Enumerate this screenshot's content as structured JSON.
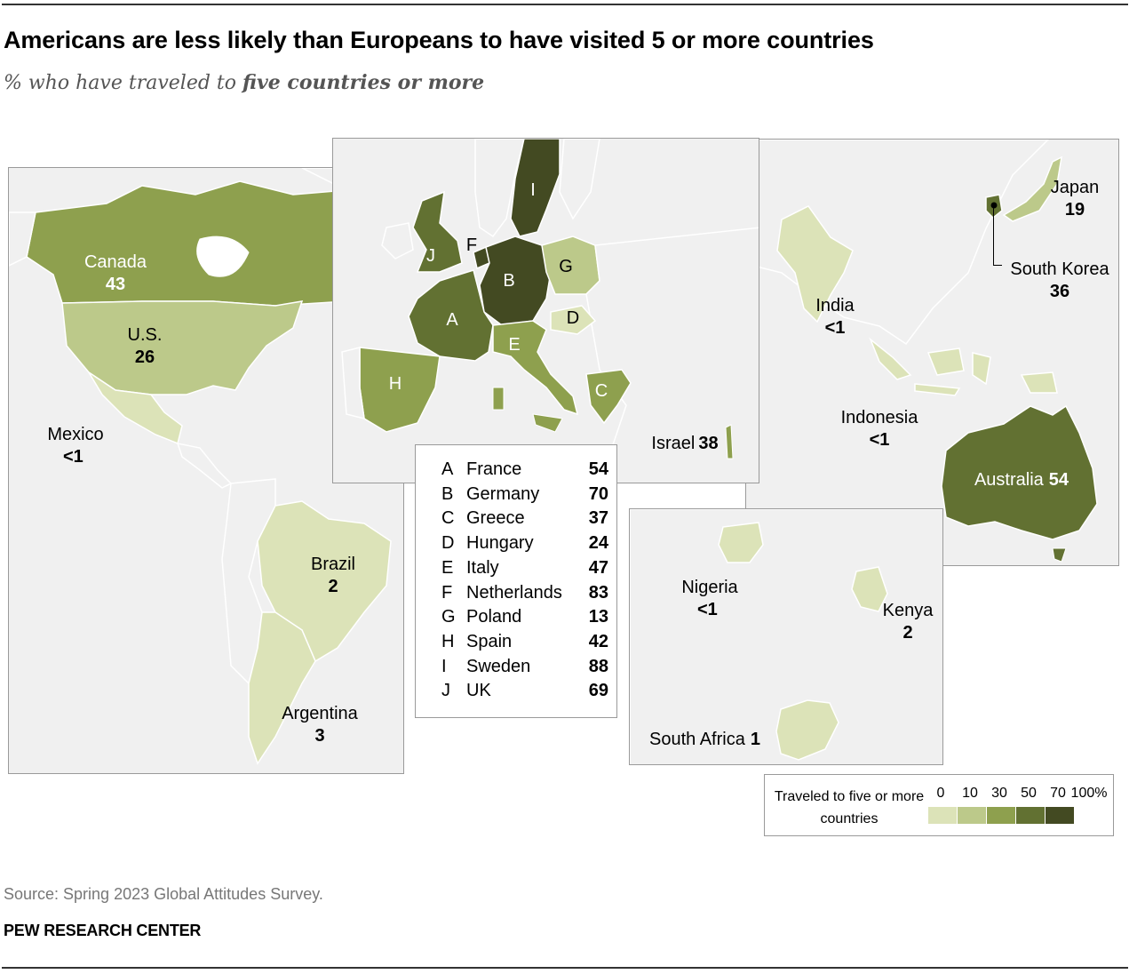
{
  "title": "Americans are less likely than Europeans to have visited 5 or more countries",
  "subtitle": {
    "prefix": "% who have traveled to ",
    "emphasis": "five countries or more"
  },
  "map_labels": {
    "canada": {
      "name": "Canada",
      "value": "43"
    },
    "us": {
      "name": "U.S.",
      "value": "26"
    },
    "mexico": {
      "name": "Mexico",
      "value": "<1"
    },
    "brazil": {
      "name": "Brazil",
      "value": "2"
    },
    "argentina": {
      "name": "Argentina",
      "value": "3"
    },
    "israel": {
      "name": "Israel",
      "value": "38"
    },
    "japan": {
      "name": "Japan",
      "value": "19"
    },
    "south_korea": {
      "name": "South Korea",
      "value": "36"
    },
    "india": {
      "name": "India",
      "value": "<1"
    },
    "indonesia": {
      "name": "Indonesia",
      "value": "<1"
    },
    "australia": {
      "name": "Australia",
      "value": "54"
    },
    "nigeria": {
      "name": "Nigeria",
      "value": "<1"
    },
    "kenya": {
      "name": "Kenya",
      "value": "2"
    },
    "south_africa": {
      "name": "South Africa",
      "value": "1"
    }
  },
  "europe_letters": {
    "A": "A",
    "B": "B",
    "C": "C",
    "D": "D",
    "E": "E",
    "F": "F",
    "G": "G",
    "H": "H",
    "I": "I",
    "J": "J"
  },
  "europe_table": [
    {
      "key": "A",
      "country": "France",
      "value": "54"
    },
    {
      "key": "B",
      "country": "Germany",
      "value": "70"
    },
    {
      "key": "C",
      "country": "Greece",
      "value": "37"
    },
    {
      "key": "D",
      "country": "Hungary",
      "value": "24"
    },
    {
      "key": "E",
      "country": "Italy",
      "value": "47"
    },
    {
      "key": "F",
      "country": "Netherlands",
      "value": "83"
    },
    {
      "key": "G",
      "country": "Poland",
      "value": "13"
    },
    {
      "key": "H",
      "country": "Spain",
      "value": "42"
    },
    {
      "key": "I",
      "country": "Sweden",
      "value": "88"
    },
    {
      "key": "J",
      "country": "UK",
      "value": "69"
    }
  ],
  "legend": {
    "title": "Traveled to five or more countries",
    "ticks": [
      "0",
      "10",
      "30",
      "50",
      "70",
      "100%"
    ],
    "colors": [
      "#dce3b8",
      "#bcc98a",
      "#8ea04e",
      "#627132",
      "#434a22"
    ]
  },
  "colors": {
    "land_other": "#f0f0f0",
    "border": "#ffffff",
    "panel_border": "#9a9a9a"
  },
  "source": "Source: Spring 2023 Global Attitudes Survey.",
  "brand": "PEW RESEARCH CENTER"
}
